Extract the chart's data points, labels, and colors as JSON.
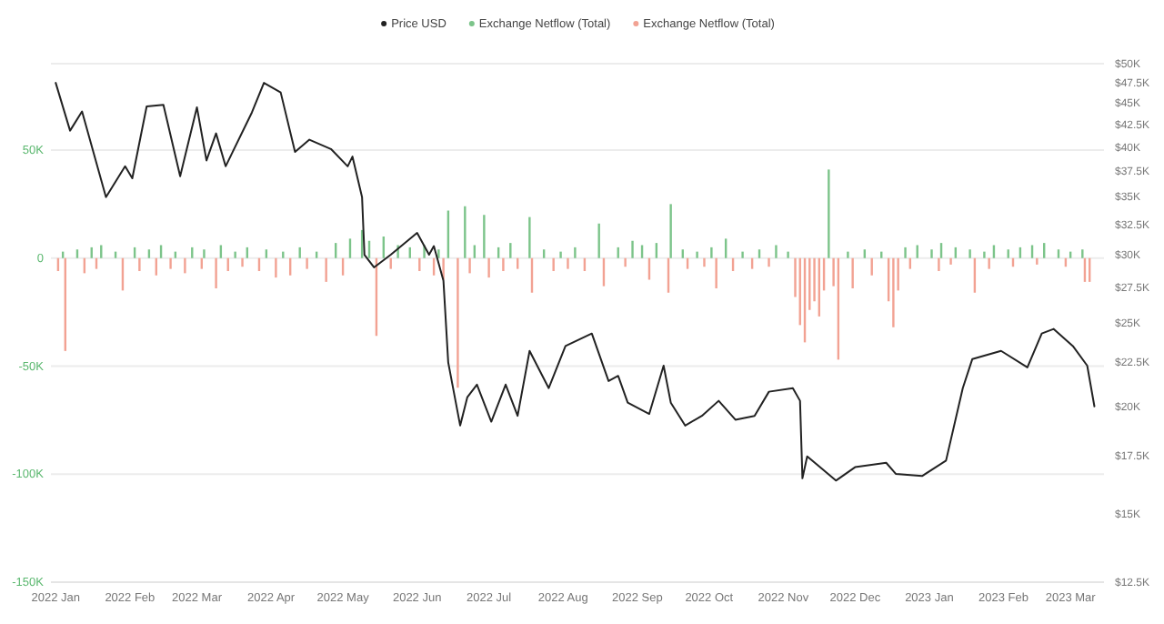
{
  "chart_data": {
    "type": "bar",
    "legend": "top",
    "grid": "y",
    "log": "y2",
    "xlim": [
      "2021-12-30",
      "2023-03-15"
    ],
    "xticks": [
      {
        "value": "2022-01-01",
        "label": "2022 Jan"
      },
      {
        "value": "2022-02-01",
        "label": "2022 Feb"
      },
      {
        "value": "2022-03-01",
        "label": "2022 Mar"
      },
      {
        "value": "2022-04-01",
        "label": "2022 Apr"
      },
      {
        "value": "2022-05-01",
        "label": "2022 May"
      },
      {
        "value": "2022-06-01",
        "label": "2022 Jun"
      },
      {
        "value": "2022-07-01",
        "label": "2022 Jul"
      },
      {
        "value": "2022-08-01",
        "label": "2022 Aug"
      },
      {
        "value": "2022-09-01",
        "label": "2022 Sep"
      },
      {
        "value": "2022-10-01",
        "label": "2022 Oct"
      },
      {
        "value": "2022-11-01",
        "label": "2022 Nov"
      },
      {
        "value": "2022-12-01",
        "label": "2022 Dec"
      },
      {
        "value": "2023-01-01",
        "label": "2023 Jan"
      },
      {
        "value": "2023-02-01",
        "label": "2023 Feb"
      },
      {
        "value": "2023-03-01",
        "label": "2023 Mar"
      }
    ],
    "ylim": [
      -150000,
      90000
    ],
    "yticks": [
      {
        "value": 50000,
        "label": "50K"
      },
      0,
      {
        "value": -50000,
        "label": "-50K"
      },
      {
        "value": -100000,
        "label": "-100K"
      },
      {
        "value": -150000,
        "label": "-150K"
      }
    ],
    "y2lim": [
      12500,
      50000
    ],
    "y2ticks": [
      {
        "value": 50000,
        "label": "$50K"
      },
      {
        "value": 47500,
        "label": "$47.5K"
      },
      {
        "value": 45000,
        "label": "$45K"
      },
      {
        "value": 42500,
        "label": "$42.5K"
      },
      {
        "value": 40000,
        "label": "$40K"
      },
      {
        "value": 37500,
        "label": "$37.5K"
      },
      {
        "value": 35000,
        "label": "$35K"
      },
      {
        "value": 32500,
        "label": "$32.5K"
      },
      {
        "value": 30000,
        "label": "$30K"
      },
      {
        "value": 27500,
        "label": "$27.5K"
      },
      {
        "value": 25000,
        "label": "$25K"
      },
      {
        "value": 22500,
        "label": "$22.5K"
      },
      {
        "value": 20000,
        "label": "$20K"
      },
      {
        "value": 17500,
        "label": "$17.5K"
      },
      {
        "value": 15000,
        "label": "$15K"
      },
      {
        "value": 12500,
        "label": "$12.5K"
      }
    ],
    "series": [
      {
        "name": "Price USD",
        "type": "line",
        "axis": "y2",
        "color": "#222222",
        "x": [
          "2022-01-01",
          "2022-01-07",
          "2022-01-12",
          "2022-01-22",
          "2022-01-30",
          "2022-02-02",
          "2022-02-08",
          "2022-02-15",
          "2022-02-22",
          "2022-03-01",
          "2022-03-05",
          "2022-03-09",
          "2022-03-13",
          "2022-03-24",
          "2022-03-29",
          "2022-04-05",
          "2022-04-11",
          "2022-04-17",
          "2022-04-26",
          "2022-05-03",
          "2022-05-05",
          "2022-05-09",
          "2022-05-10",
          "2022-05-14",
          "2022-05-21",
          "2022-06-01",
          "2022-06-06",
          "2022-06-08",
          "2022-06-12",
          "2022-06-14",
          "2022-06-19",
          "2022-06-22",
          "2022-06-26",
          "2022-07-02",
          "2022-07-08",
          "2022-07-13",
          "2022-07-18",
          "2022-07-26",
          "2022-08-02",
          "2022-08-13",
          "2022-08-20",
          "2022-08-24",
          "2022-08-28",
          "2022-09-06",
          "2022-09-12",
          "2022-09-15",
          "2022-09-21",
          "2022-09-28",
          "2022-10-05",
          "2022-10-12",
          "2022-10-20",
          "2022-10-26",
          "2022-11-05",
          "2022-11-08",
          "2022-11-09",
          "2022-11-11",
          "2022-11-23",
          "2022-12-01",
          "2022-12-14",
          "2022-12-18",
          "2022-12-29",
          "2023-01-08",
          "2023-01-15",
          "2023-01-19",
          "2023-01-31",
          "2023-02-11",
          "2023-02-17",
          "2023-02-22",
          "2023-03-02",
          "2023-03-08",
          "2023-03-11"
        ],
        "values": [
          47500,
          41800,
          44000,
          35000,
          38000,
          36800,
          44600,
          44800,
          37000,
          44500,
          38600,
          41500,
          38000,
          43900,
          47500,
          46300,
          39500,
          40800,
          39800,
          38000,
          39000,
          35000,
          30000,
          29000,
          30000,
          31800,
          30000,
          30700,
          28000,
          22500,
          19000,
          20500,
          21200,
          19200,
          21200,
          19500,
          23200,
          21000,
          23500,
          24300,
          21400,
          21700,
          20200,
          19600,
          22300,
          20200,
          19000,
          19500,
          20300,
          19300,
          19500,
          20800,
          21000,
          20300,
          16500,
          17500,
          16400,
          17000,
          17200,
          16700,
          16600,
          17300,
          21000,
          22700,
          23200,
          22200,
          24300,
          24600,
          23500,
          22300,
          20000
        ]
      },
      {
        "name": "Exchange Netflow (Total)",
        "color": "#7cc48a",
        "x": [
          "2022-01-04",
          "2022-01-10",
          "2022-01-16",
          "2022-01-20",
          "2022-01-26",
          "2022-02-03",
          "2022-02-09",
          "2022-02-14",
          "2022-02-20",
          "2022-02-27",
          "2022-03-04",
          "2022-03-11",
          "2022-03-17",
          "2022-03-22",
          "2022-03-30",
          "2022-04-06",
          "2022-04-13",
          "2022-04-20",
          "2022-04-28",
          "2022-05-04",
          "2022-05-09",
          "2022-05-12",
          "2022-05-18",
          "2022-05-24",
          "2022-05-29",
          "2022-06-04",
          "2022-06-10",
          "2022-06-14",
          "2022-06-21",
          "2022-06-25",
          "2022-06-29",
          "2022-07-05",
          "2022-07-10",
          "2022-07-18",
          "2022-07-24",
          "2022-07-31",
          "2022-08-06",
          "2022-08-16",
          "2022-08-24",
          "2022-08-30",
          "2022-09-03",
          "2022-09-09",
          "2022-09-15",
          "2022-09-20",
          "2022-09-26",
          "2022-10-02",
          "2022-10-08",
          "2022-10-15",
          "2022-10-22",
          "2022-10-29",
          "2022-11-03",
          "2022-11-20",
          "2022-11-28",
          "2022-12-05",
          "2022-12-12",
          "2022-12-22",
          "2022-12-27",
          "2023-01-02",
          "2023-01-06",
          "2023-01-12",
          "2023-01-18",
          "2023-01-24",
          "2023-01-28",
          "2023-02-03",
          "2023-02-08",
          "2023-02-13",
          "2023-02-18",
          "2023-02-24",
          "2023-03-01",
          "2023-03-06"
        ],
        "values": [
          3000,
          4000,
          5000,
          6000,
          3000,
          5000,
          4000,
          6000,
          3000,
          5000,
          4000,
          6000,
          3000,
          5000,
          4000,
          3000,
          5000,
          3000,
          7000,
          9000,
          13000,
          8000,
          10000,
          6000,
          5000,
          6000,
          4000,
          22000,
          24000,
          6000,
          20000,
          5000,
          7000,
          19000,
          4000,
          3000,
          5000,
          16000,
          5000,
          8000,
          6000,
          7000,
          25000,
          4000,
          3000,
          5000,
          9000,
          3000,
          4000,
          6000,
          3000,
          41000,
          3000,
          4000,
          3000,
          5000,
          6000,
          4000,
          7000,
          5000,
          4000,
          3000,
          6000,
          4000,
          5000,
          6000,
          7000,
          4000,
          3000,
          4000
        ]
      },
      {
        "name": "Exchange Netflow (Total)",
        "color": "#f2a293",
        "x": [
          "2022-01-02",
          "2022-01-05",
          "2022-01-13",
          "2022-01-18",
          "2022-01-29",
          "2022-02-05",
          "2022-02-12",
          "2022-02-18",
          "2022-02-24",
          "2022-03-03",
          "2022-03-09",
          "2022-03-14",
          "2022-03-20",
          "2022-03-27",
          "2022-04-03",
          "2022-04-09",
          "2022-04-16",
          "2022-04-24",
          "2022-05-01",
          "2022-05-15",
          "2022-05-21",
          "2022-06-02",
          "2022-06-08",
          "2022-06-12",
          "2022-06-18",
          "2022-06-23",
          "2022-07-01",
          "2022-07-07",
          "2022-07-13",
          "2022-07-19",
          "2022-07-28",
          "2022-08-03",
          "2022-08-10",
          "2022-08-18",
          "2022-08-27",
          "2022-09-06",
          "2022-09-14",
          "2022-09-22",
          "2022-09-29",
          "2022-10-04",
          "2022-10-11",
          "2022-10-19",
          "2022-10-26",
          "2022-11-06",
          "2022-11-08",
          "2022-11-10",
          "2022-11-12",
          "2022-11-14",
          "2022-11-16",
          "2022-11-18",
          "2022-11-22",
          "2022-11-24",
          "2022-11-30",
          "2022-12-08",
          "2022-12-15",
          "2022-12-17",
          "2022-12-19",
          "2022-12-24",
          "2023-01-05",
          "2023-01-10",
          "2023-01-20",
          "2023-01-26",
          "2023-02-05",
          "2023-02-15",
          "2023-02-27",
          "2023-03-07",
          "2023-03-09"
        ],
        "values": [
          -6000,
          -43000,
          -7000,
          -5000,
          -15000,
          -6000,
          -8000,
          -5000,
          -7000,
          -5000,
          -14000,
          -6000,
          -4000,
          -6000,
          -9000,
          -8000,
          -5000,
          -11000,
          -8000,
          -36000,
          -5000,
          -6000,
          -8000,
          -10000,
          -60000,
          -7000,
          -9000,
          -6000,
          -5000,
          -16000,
          -6000,
          -5000,
          -6000,
          -13000,
          -4000,
          -10000,
          -16000,
          -5000,
          -4000,
          -14000,
          -6000,
          -5000,
          -4000,
          -18000,
          -31000,
          -39000,
          -24000,
          -20000,
          -27000,
          -15000,
          -13000,
          -47000,
          -14000,
          -8000,
          -20000,
          -32000,
          -15000,
          -5000,
          -6000,
          -3000,
          -16000,
          -5000,
          -4000,
          -3000,
          -4000,
          -11000,
          -11000
        ]
      }
    ]
  }
}
